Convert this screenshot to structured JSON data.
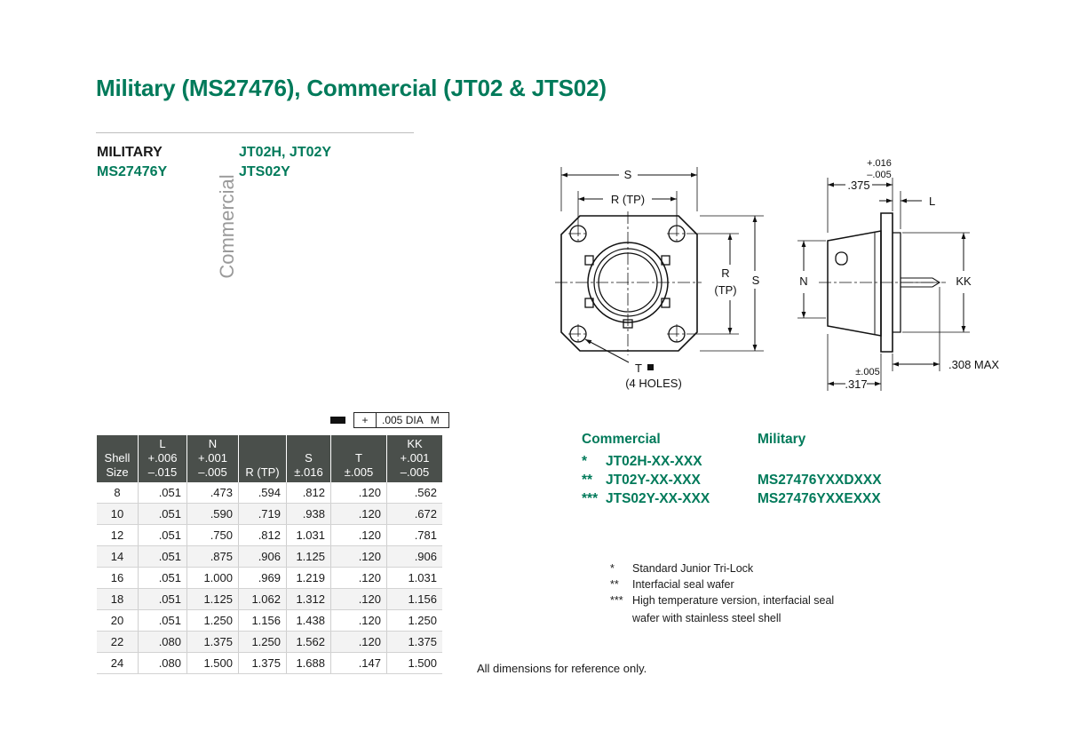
{
  "title": "Military (MS27476), Commercial (JT02 & JTS02)",
  "header": {
    "military_label": "MILITARY",
    "military_part": "MS27476Y",
    "commercial_vertical": "Commercial",
    "commercial_parts_1": "JT02H, JT02Y",
    "commercial_parts_2": "JTS02Y"
  },
  "tolerance_frame": {
    "symbol": "+",
    "value": ".005 DIA",
    "modifier": "M"
  },
  "table": {
    "headers": [
      [
        "Shell",
        "Size"
      ],
      [
        "L",
        "+.006",
        "–.015"
      ],
      [
        "N",
        "+.001",
        "–.005"
      ],
      [
        "R (TP)"
      ],
      [
        "S",
        "±.016"
      ],
      [
        "T",
        "±.005"
      ],
      [
        "KK",
        "+.001",
        "–.005"
      ]
    ],
    "rows": [
      [
        "8",
        ".051",
        ".473",
        ".594",
        ".812",
        ".120",
        ".562"
      ],
      [
        "10",
        ".051",
        ".590",
        ".719",
        ".938",
        ".120",
        ".672"
      ],
      [
        "12",
        ".051",
        ".750",
        ".812",
        "1.031",
        ".120",
        ".781"
      ],
      [
        "14",
        ".051",
        ".875",
        ".906",
        "1.125",
        ".120",
        ".906"
      ],
      [
        "16",
        ".051",
        "1.000",
        ".969",
        "1.219",
        ".120",
        "1.031"
      ],
      [
        "18",
        ".051",
        "1.125",
        "1.062",
        "1.312",
        ".120",
        "1.156"
      ],
      [
        "20",
        ".051",
        "1.250",
        "1.156",
        "1.438",
        ".120",
        "1.250"
      ],
      [
        "22",
        ".080",
        "1.375",
        "1.250",
        "1.562",
        ".120",
        "1.375"
      ],
      [
        "24",
        ".080",
        "1.500",
        "1.375",
        "1.688",
        ".147",
        "1.500"
      ]
    ]
  },
  "reference_note": "All dimensions for reference only.",
  "part_numbers": {
    "commercial_heading": "Commercial",
    "military_heading": "Military",
    "rows": [
      {
        "marker": "*",
        "commercial": "JT02H-XX-XXX",
        "military": ""
      },
      {
        "marker": "**",
        "commercial": "JT02Y-XX-XXX",
        "military": "MS27476YXXDXXX"
      },
      {
        "marker": "***",
        "commercial": "JTS02Y-XX-XXX",
        "military": "MS27476YXXEXXX"
      }
    ]
  },
  "footnotes": [
    {
      "marker": "*",
      "text": "Standard Junior Tri-Lock"
    },
    {
      "marker": "**",
      "text": "Interfacial seal wafer"
    },
    {
      "marker": "***",
      "text": "High temperature version, interfacial seal"
    },
    {
      "marker": "",
      "text": "wafer with stainless steel shell"
    }
  ],
  "drawing": {
    "front": {
      "dim_s_top": "S",
      "dim_r_top": "R (TP)",
      "dim_r_side_1": "R",
      "dim_r_side_2": "(TP)",
      "dim_s_side": "S",
      "hole_label_1": "T",
      "hole_label_2": "(4 HOLES)"
    },
    "side": {
      "tol_plus": "+.016",
      "tol_minus": "–.005",
      "dim_375": ".375",
      "dim_l": "L",
      "dim_n": "N",
      "dim_kk": "KK",
      "tol_005": "±.005",
      "dim_317": ".317",
      "dim_308": ".308 MAX"
    }
  },
  "colors": {
    "brand_green": "#007a5a",
    "table_header": "#4a4f4b",
    "vertical_label": "#9a9a9a"
  }
}
